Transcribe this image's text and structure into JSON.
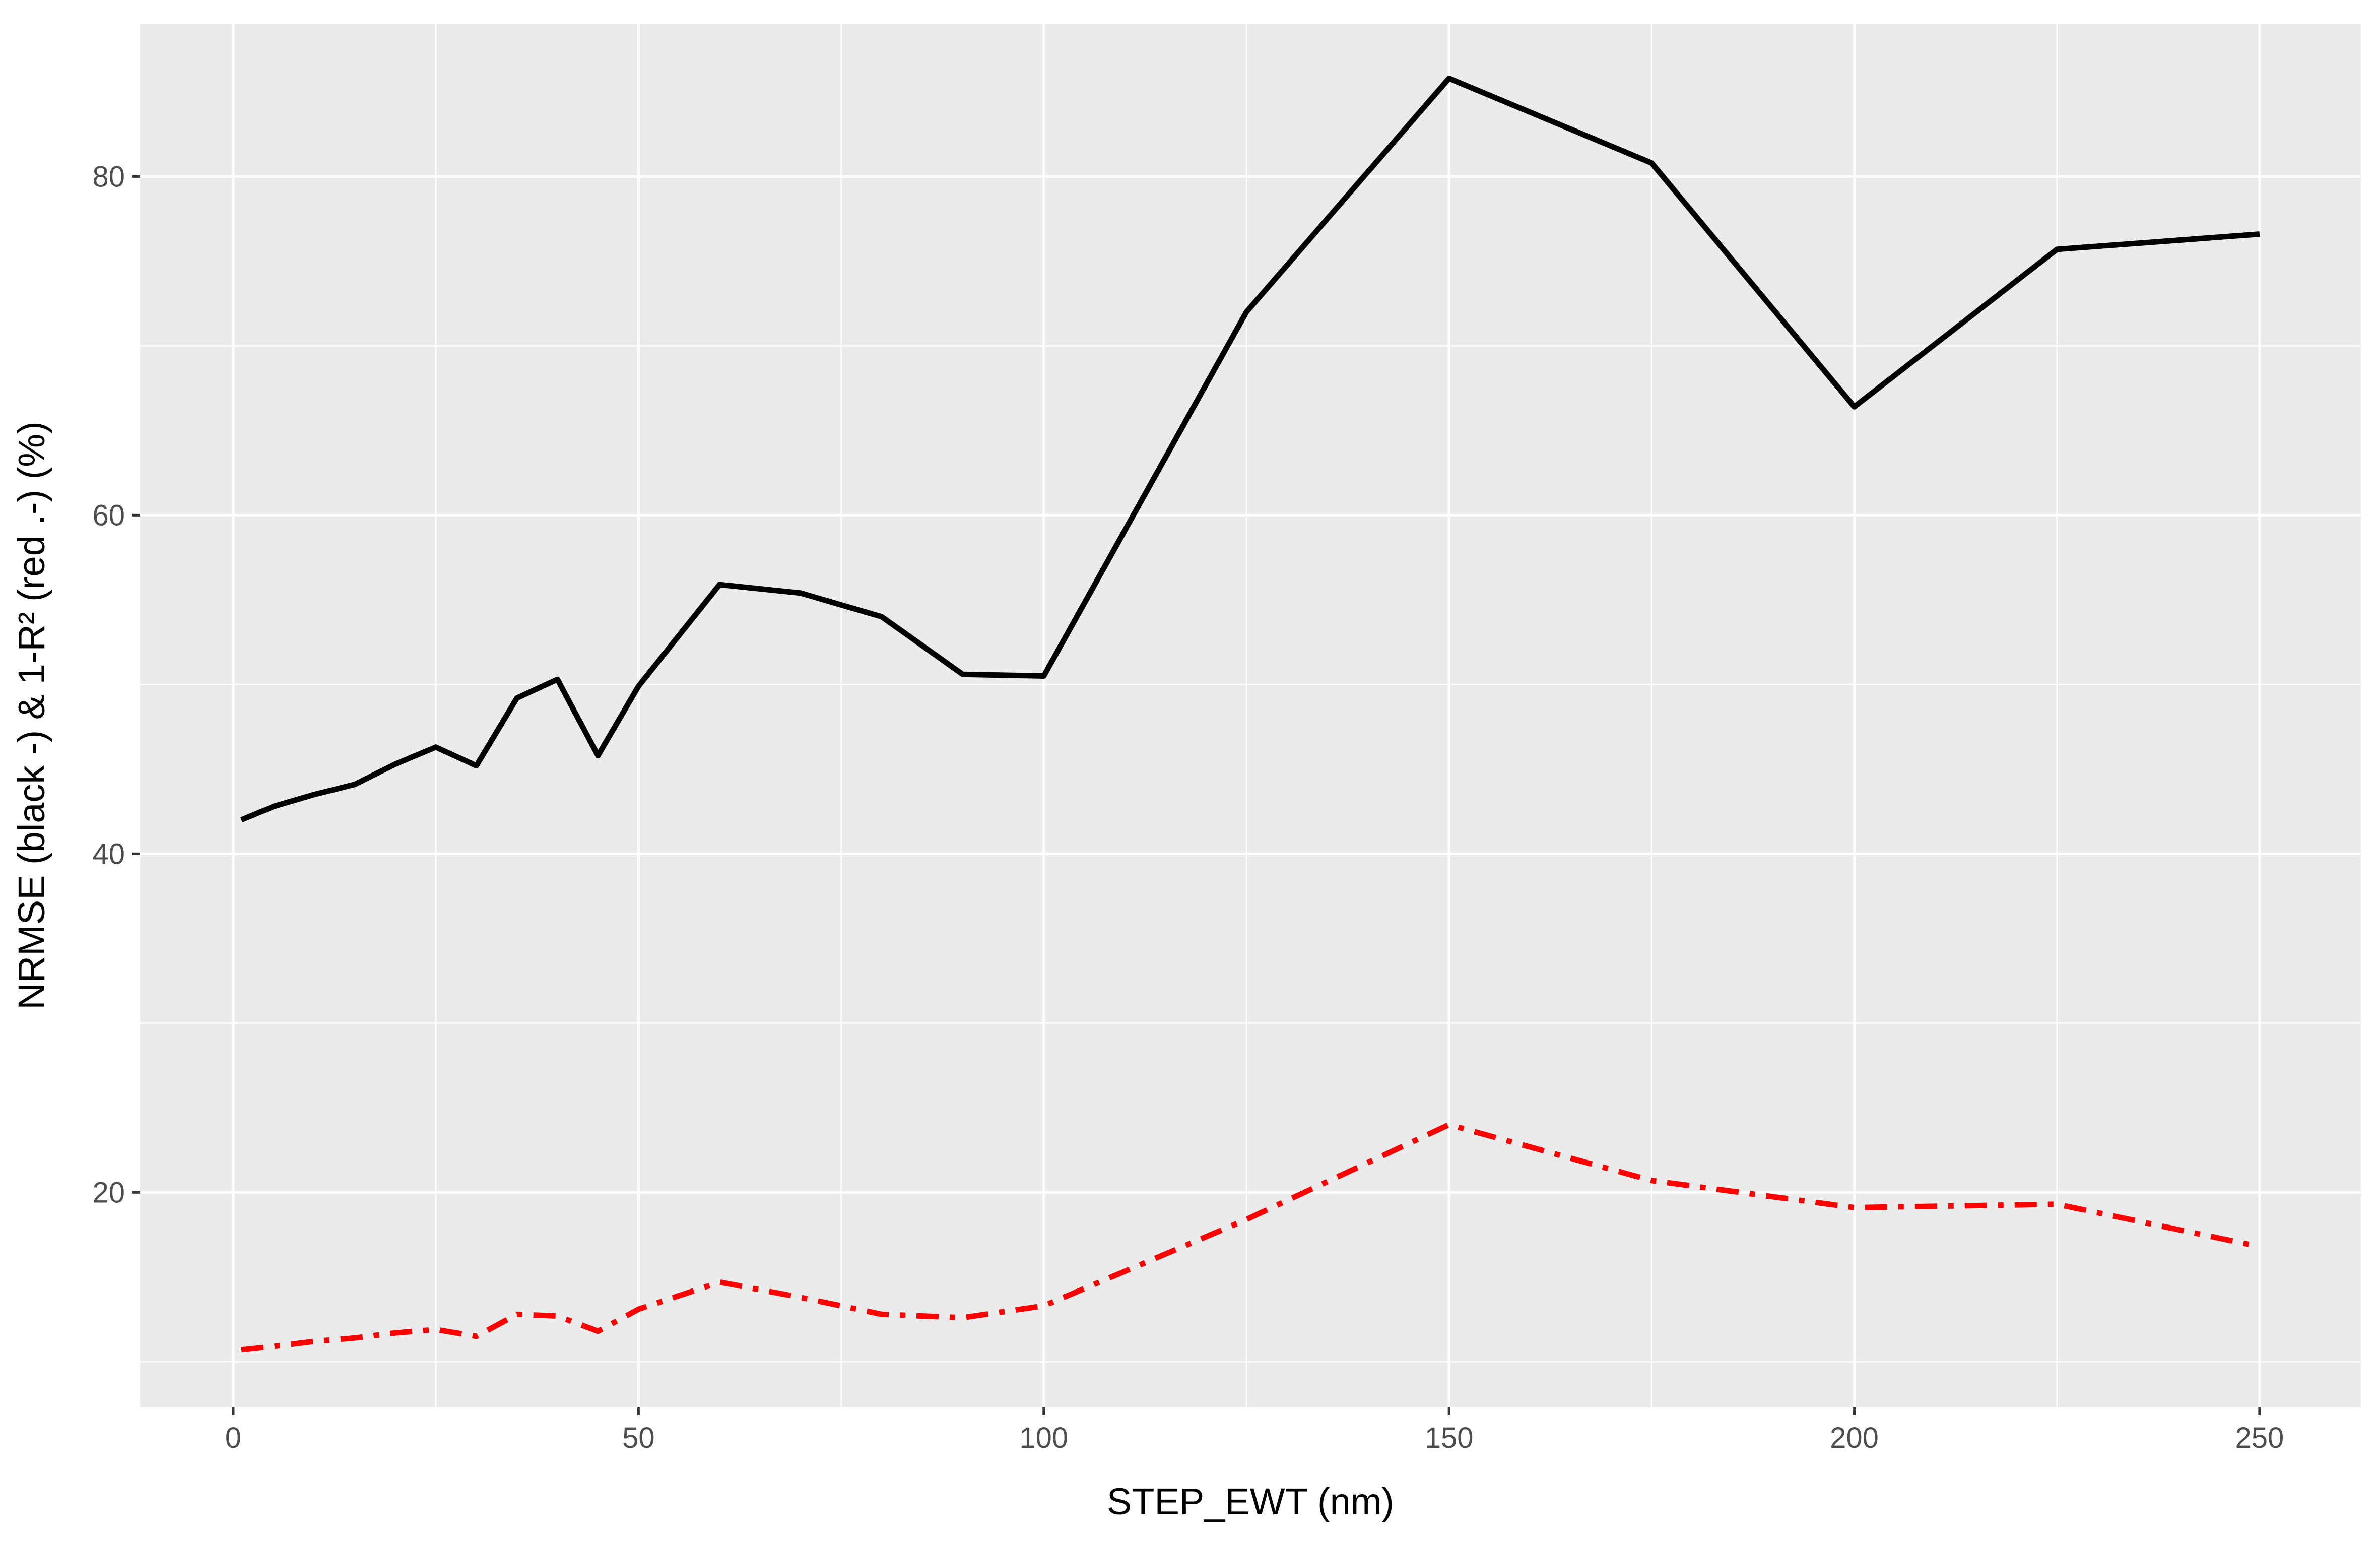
{
  "chart_data": {
    "type": "line",
    "title": "",
    "xlabel": "STEP_EWT (nm)",
    "ylabel": "NRMSE (black -) & 1-R² (red .-) (%)",
    "xlim": [
      -11.5,
      262.5
    ],
    "ylim": [
      7.3,
      89.0
    ],
    "x_ticks": [
      0,
      50,
      100,
      150,
      200,
      250
    ],
    "x_tick_labels": [
      "0",
      "50",
      "100",
      "150",
      "200",
      "250"
    ],
    "y_ticks": [
      20,
      40,
      60,
      80
    ],
    "y_tick_labels": [
      "20",
      "40",
      "60",
      "80"
    ],
    "grid": true,
    "legend": "none",
    "background": "#ebebeb",
    "series": [
      {
        "color": "#000000",
        "linestyle": "solid",
        "x": [
          1,
          5,
          10,
          15,
          20,
          25,
          30,
          35,
          40,
          45,
          50,
          60,
          70,
          80,
          90,
          100,
          125,
          150,
          175,
          200,
          225,
          250
        ],
        "y": [
          42.0,
          42.8,
          43.5,
          44.1,
          45.3,
          46.3,
          45.2,
          49.2,
          50.3,
          45.8,
          49.9,
          55.9,
          55.4,
          54.0,
          50.6,
          50.5,
          72.0,
          85.8,
          80.8,
          66.4,
          75.7,
          76.6
        ]
      },
      {
        "color": "#ff0000",
        "linestyle": "dashdot",
        "x": [
          1,
          5,
          10,
          15,
          20,
          25,
          30,
          35,
          40,
          45,
          50,
          60,
          70,
          80,
          90,
          100,
          125,
          150,
          175,
          200,
          225,
          250
        ],
        "y": [
          10.7,
          10.9,
          11.2,
          11.4,
          11.7,
          11.9,
          11.5,
          12.8,
          12.7,
          11.8,
          13.1,
          14.7,
          13.8,
          12.8,
          12.6,
          13.3,
          18.4,
          24.0,
          20.7,
          19.1,
          19.3,
          16.8
        ]
      }
    ]
  }
}
